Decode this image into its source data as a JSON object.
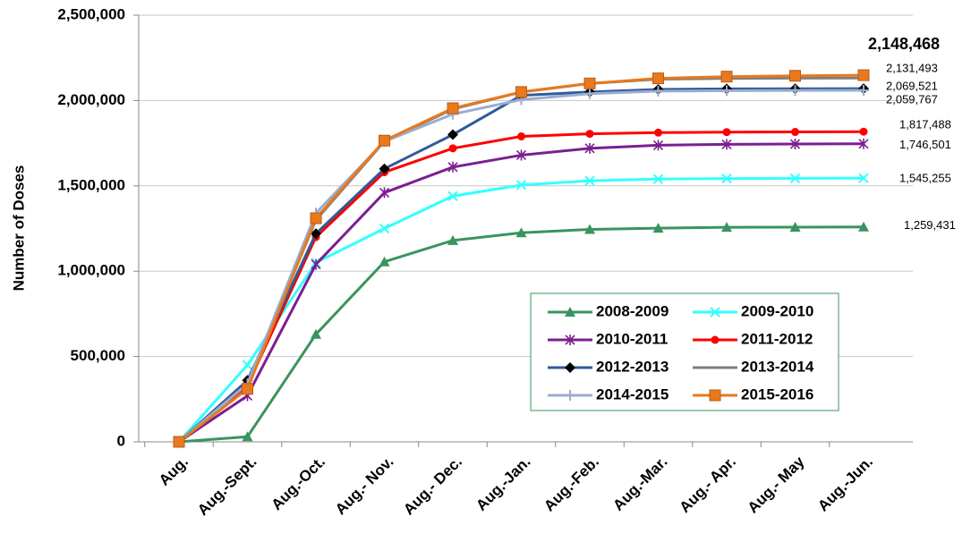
{
  "chart_data": {
    "type": "line",
    "y_label": "Number of Doses",
    "categories": [
      "Aug.",
      "Aug.-Sept.",
      "Aug.-Oct.",
      "Aug.- Nov.",
      "Aug.- Dec.",
      "Aug.-Jan.",
      "Aug.-Feb.",
      "Aug.-Mar.",
      "Aug.- Apr.",
      "Aug.- May",
      "Aug.-Jun."
    ],
    "ylim": [
      0,
      2500000
    ],
    "yticks": [
      {
        "value": 0,
        "label": "0"
      },
      {
        "value": 500000,
        "label": "500,000"
      },
      {
        "value": 1000000,
        "label": "1,000,000"
      },
      {
        "value": 1500000,
        "label": "1,500,000"
      },
      {
        "value": 2000000,
        "label": "2,000,000"
      },
      {
        "value": 2500000,
        "label": "2,500,000"
      }
    ],
    "grid": true,
    "legend": "lower right",
    "series": [
      {
        "name": "2008-2009",
        "color": "#3a9460",
        "marker": "triangle",
        "values": [
          0,
          30000,
          630000,
          1055000,
          1180000,
          1225000,
          1245000,
          1252000,
          1257000,
          1258000,
          1259431
        ],
        "value_labels": [
          null,
          null,
          null,
          null,
          null,
          null,
          null,
          null,
          null,
          null,
          "1,259,431"
        ]
      },
      {
        "name": "2009-2010",
        "color": "#33ffff",
        "marker": "x",
        "values": [
          0,
          450000,
          1050000,
          1250000,
          1440000,
          1505000,
          1530000,
          1540000,
          1543000,
          1544000,
          1545255
        ],
        "value_labels": [
          null,
          null,
          null,
          null,
          null,
          null,
          null,
          null,
          null,
          null,
          "1,545,255"
        ]
      },
      {
        "name": "2010-2011",
        "color": "#7b1f8f",
        "marker": "star",
        "values": [
          0,
          270000,
          1040000,
          1460000,
          1610000,
          1680000,
          1720000,
          1738000,
          1743000,
          1745000,
          1746501
        ],
        "value_labels": [
          null,
          null,
          null,
          null,
          null,
          null,
          null,
          null,
          null,
          null,
          "1,746,501"
        ]
      },
      {
        "name": "2011-2012",
        "color": "#ff0000",
        "marker": "circle",
        "values": [
          0,
          330000,
          1200000,
          1580000,
          1720000,
          1790000,
          1805000,
          1812000,
          1815000,
          1816000,
          1817488
        ],
        "value_labels": [
          null,
          null,
          null,
          null,
          null,
          null,
          null,
          null,
          null,
          null,
          "1,817,488"
        ]
      },
      {
        "name": "2012-2013",
        "color": "#2f5a9a",
        "marker": "diamond",
        "values": [
          0,
          360000,
          1220000,
          1600000,
          1800000,
          2030000,
          2050000,
          2065000,
          2068000,
          2069000,
          2069521
        ],
        "value_labels": [
          null,
          null,
          null,
          null,
          null,
          null,
          null,
          null,
          null,
          null,
          "2,069,521"
        ]
      },
      {
        "name": "2013-2014",
        "color": "#7f7f7f",
        "marker": "none",
        "values": [
          0,
          340000,
          1300000,
          1760000,
          1950000,
          2050000,
          2100000,
          2125000,
          2130000,
          2131000,
          2131493
        ],
        "value_labels": [
          null,
          null,
          null,
          null,
          null,
          null,
          null,
          null,
          null,
          null,
          "2,131,493"
        ]
      },
      {
        "name": "2014-2015",
        "color": "#9aacd0",
        "marker": "plus",
        "values": [
          0,
          340000,
          1340000,
          1760000,
          1920000,
          2005000,
          2040000,
          2055000,
          2058000,
          2059000,
          2059767
        ],
        "value_labels": [
          null,
          null,
          null,
          null,
          null,
          null,
          null,
          null,
          null,
          null,
          "2,059,767"
        ]
      },
      {
        "name": "2015-2016",
        "color": "#e8791f",
        "marker": "square",
        "values": [
          0,
          310000,
          1310000,
          1765000,
          1955000,
          2050000,
          2100000,
          2130000,
          2140000,
          2145000,
          2148468
        ],
        "value_labels": [
          null,
          null,
          null,
          null,
          null,
          null,
          null,
          null,
          null,
          null,
          "2,148,468"
        ]
      }
    ]
  }
}
